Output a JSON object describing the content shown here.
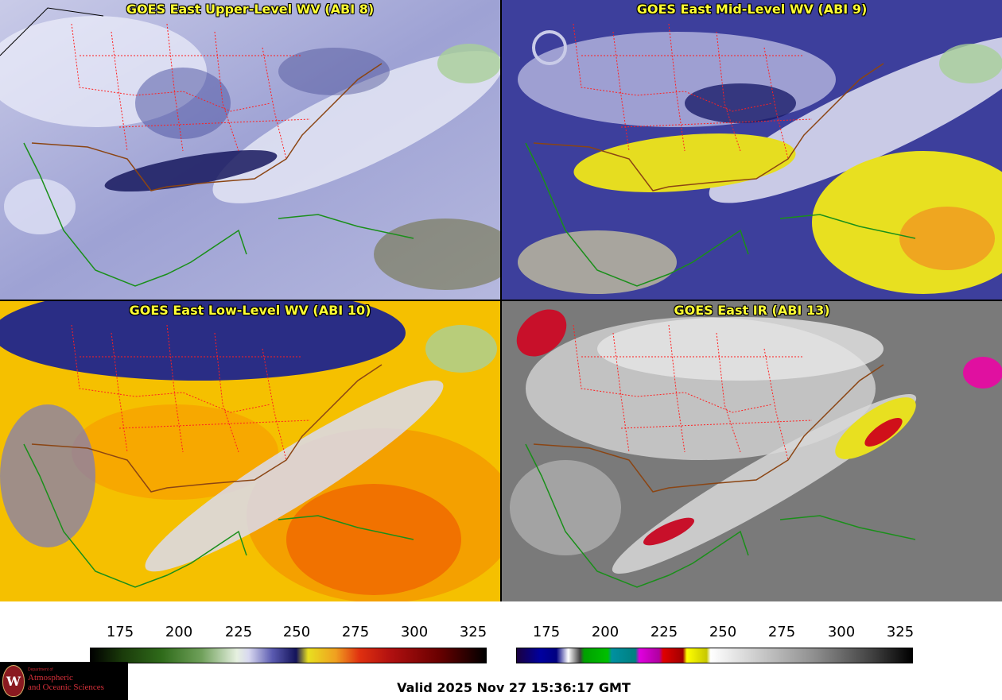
{
  "panels": [
    {
      "title": "GOES East Upper-Level WV (ABI 8)"
    },
    {
      "title": "GOES East Mid-Level WV (ABI 9)"
    },
    {
      "title": "GOES East Low-Level WV (ABI 10)"
    },
    {
      "title": "GOES East IR (ABI 13)"
    }
  ],
  "colorbars": {
    "wv": {
      "ticks": [
        "175",
        "200",
        "225",
        "250",
        "275",
        "300",
        "325"
      ]
    },
    "ir": {
      "ticks": [
        "175",
        "200",
        "225",
        "250",
        "275",
        "300",
        "325"
      ]
    }
  },
  "logo": {
    "seal_letter": "W",
    "dept": "Department of",
    "line1": "Atmospheric",
    "line2": "and Oceanic Sciences"
  },
  "footer": {
    "valid": "Valid 2025 Nov 27 15:36:17 GMT"
  },
  "colors": {
    "title_text": "#ffff33",
    "state_borders": "#ff2020",
    "coastline_us": "#8b4513",
    "coastline_other": "#1a8f1a"
  }
}
